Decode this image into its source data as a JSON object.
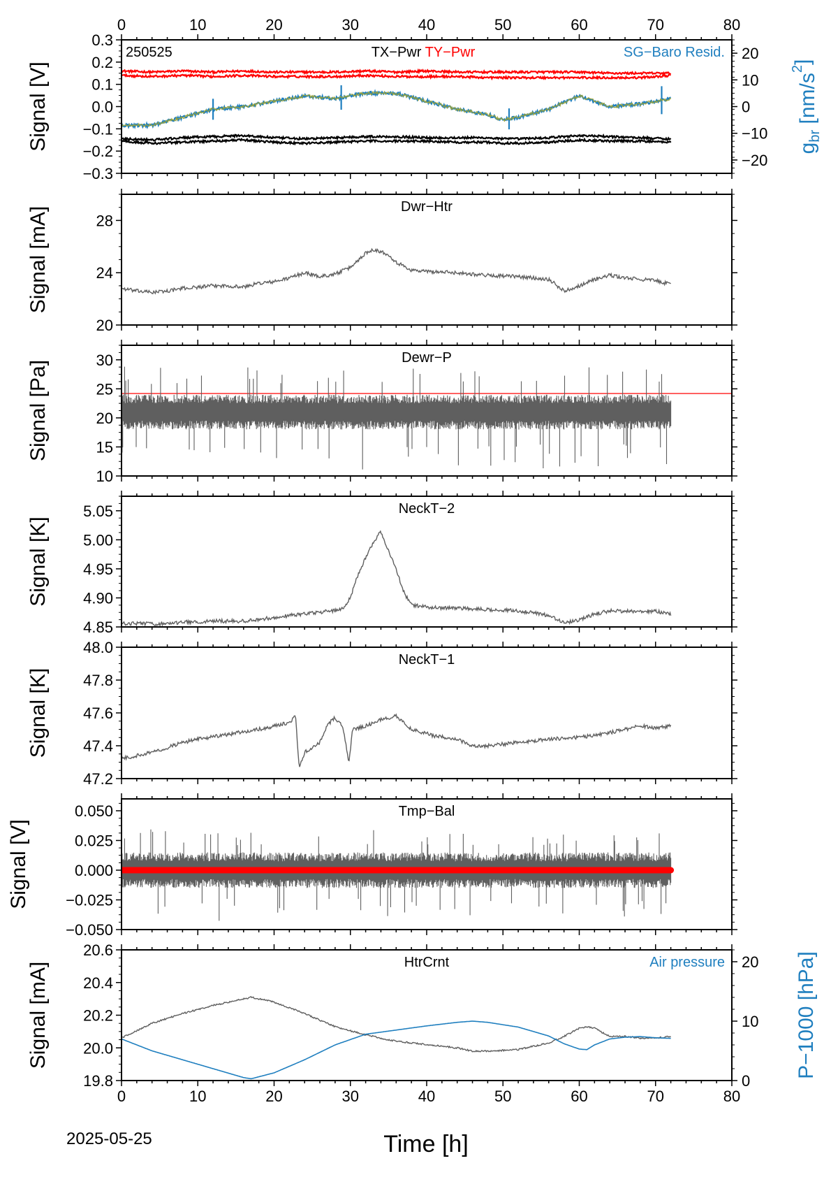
{
  "date_label": "2025-05-25",
  "x_axis": {
    "label": "Time [h]",
    "lim": [
      0,
      80
    ],
    "ticks": [
      0,
      10,
      20,
      30,
      40,
      50,
      60,
      70,
      80
    ]
  },
  "colors": {
    "signal": "#5f5f5f",
    "red": "#ff0000",
    "blue": "#1f7fbf",
    "olive": "#9aa33a",
    "black": "#000000"
  },
  "chart_data": [
    {
      "type": "line",
      "id": "tx-ty-pwr",
      "code_label": "250525",
      "panel_title": "TX−Pwr",
      "panel_title2": "TY−Pwr",
      "right_legend": "SG−Baro Resid.",
      "ylabel": "Signal [V]",
      "ylim": [
        -0.3,
        0.3
      ],
      "yticks": [
        -0.3,
        -0.2,
        -0.1,
        0.0,
        0.1,
        0.2,
        0.3
      ],
      "ytick_labels": [
        "−0.3",
        "−0.2",
        "−0.1",
        "0.0",
        "0.1",
        "0.2",
        "0.3"
      ],
      "y2label_main": "g",
      "y2label_sub": "br",
      "y2label_rest": " [nm/s",
      "y2label_sup": "2",
      "y2label_end": "]",
      "y2lim": [
        -25,
        25
      ],
      "y2ticks": [
        -20,
        -10,
        0,
        10,
        20
      ],
      "y2tick_labels": [
        "−20",
        "−10",
        "0",
        "10",
        "20"
      ],
      "x": [
        0,
        4,
        8,
        12,
        16,
        20,
        24,
        28,
        32,
        36,
        40,
        44,
        48,
        50,
        52,
        56,
        60,
        64,
        68,
        72
      ],
      "series": [
        {
          "name": "TY−Pwr",
          "color": "red",
          "axis": "left",
          "values": [
            0.16,
            0.155,
            0.16,
            0.155,
            0.16,
            0.155,
            0.155,
            0.155,
            0.16,
            0.155,
            0.16,
            0.155,
            0.155,
            0.155,
            0.155,
            0.155,
            0.155,
            0.15,
            0.15,
            0.15
          ]
        },
        {
          "color": "red",
          "axis": "left",
          "values": [
            0.14,
            0.135,
            0.14,
            0.135,
            0.14,
            0.135,
            0.135,
            0.135,
            0.14,
            0.135,
            0.135,
            0.135,
            0.13,
            0.13,
            0.13,
            0.13,
            0.13,
            0.13,
            0.13,
            0.14
          ]
        },
        {
          "name": "TX−Pwr",
          "color": "black",
          "axis": "left",
          "values": [
            -0.145,
            -0.15,
            -0.14,
            -0.135,
            -0.13,
            -0.14,
            -0.145,
            -0.14,
            -0.135,
            -0.135,
            -0.14,
            -0.14,
            -0.14,
            -0.145,
            -0.145,
            -0.14,
            -0.13,
            -0.135,
            -0.14,
            -0.145
          ]
        },
        {
          "color": "black",
          "axis": "left",
          "values": [
            -0.155,
            -0.165,
            -0.16,
            -0.155,
            -0.15,
            -0.16,
            -0.165,
            -0.16,
            -0.155,
            -0.155,
            -0.155,
            -0.16,
            -0.16,
            -0.165,
            -0.165,
            -0.16,
            -0.15,
            -0.155,
            -0.155,
            -0.16
          ]
        },
        {
          "name": "SG−Baro Resid.",
          "color": "blue",
          "axis": "right",
          "values": [
            -7,
            -7,
            -4,
            -1,
            0,
            2,
            4,
            3,
            5,
            5,
            2,
            -1,
            -3,
            -5,
            -4,
            -1,
            4,
            0,
            1,
            3
          ]
        },
        {
          "color": "olive",
          "axis": "right",
          "values": [
            -7,
            -7,
            -4,
            -1,
            0,
            2,
            4,
            3,
            5,
            5,
            2,
            -1,
            -3,
            -5,
            -4,
            -1,
            4,
            0,
            1,
            3
          ]
        }
      ]
    },
    {
      "type": "line",
      "id": "dwr-htr",
      "panel_title": "Dwr−Htr",
      "ylabel": "Signal [mA]",
      "ylim": [
        20,
        30
      ],
      "yticks": [
        20,
        24,
        28
      ],
      "ytick_labels": [
        "20",
        "24",
        "28"
      ],
      "x": [
        0,
        2,
        4,
        6,
        8,
        10,
        12,
        14,
        16,
        18,
        20,
        22,
        24,
        26,
        28,
        30,
        32,
        33,
        35,
        36,
        38,
        40,
        44,
        48,
        52,
        56,
        58,
        60,
        62,
        64,
        66,
        68,
        70,
        72
      ],
      "series": [
        {
          "color": "signal",
          "values": [
            22.8,
            22.6,
            22.5,
            22.6,
            22.8,
            22.9,
            23.0,
            23.0,
            22.9,
            23.2,
            23.3,
            23.6,
            24.0,
            23.7,
            23.9,
            24.4,
            25.5,
            25.8,
            25.4,
            24.8,
            24.2,
            24.1,
            24.0,
            23.8,
            23.7,
            23.5,
            22.6,
            23.0,
            23.5,
            23.8,
            23.6,
            23.5,
            23.4,
            23.1
          ]
        }
      ]
    },
    {
      "type": "line",
      "id": "dewr-p",
      "panel_title": "Dewr−P",
      "ylabel": "Signal [Pa]",
      "ylim": [
        10,
        32.5
      ],
      "yticks": [
        10,
        15,
        20,
        25,
        30
      ],
      "ytick_labels": [
        "10",
        "15",
        "20",
        "25",
        "30"
      ],
      "hline": {
        "value": 24.2,
        "color": "red"
      },
      "x_range": [
        0,
        72
      ],
      "series": [
        {
          "color": "signal",
          "mean": 21,
          "band": [
            18,
            24
          ],
          "spike_max": 29,
          "spike_min": 11
        }
      ]
    },
    {
      "type": "line",
      "id": "neckt-2",
      "panel_title": "NeckT−2",
      "ylabel": "Signal [K]",
      "ylim": [
        4.85,
        5.075
      ],
      "yticks": [
        4.85,
        4.9,
        4.95,
        5.0,
        5.05
      ],
      "ytick_labels": [
        "4.85",
        "4.90",
        "4.95",
        "5.00",
        "5.05"
      ],
      "x": [
        0,
        3,
        5,
        8,
        12,
        16,
        20,
        24,
        28,
        29,
        30,
        31,
        32,
        33,
        34,
        35,
        36,
        37,
        38,
        40,
        44,
        48,
        52,
        56,
        58,
        60,
        62,
        64,
        66,
        68,
        70,
        72
      ],
      "series": [
        {
          "color": "signal",
          "values": [
            4.856,
            4.856,
            4.855,
            4.858,
            4.86,
            4.86,
            4.866,
            4.873,
            4.878,
            4.882,
            4.9,
            4.94,
            4.97,
            4.995,
            5.015,
            4.98,
            4.95,
            4.91,
            4.888,
            4.884,
            4.882,
            4.88,
            4.878,
            4.87,
            4.857,
            4.862,
            4.872,
            4.878,
            4.877,
            4.877,
            4.877,
            4.872
          ]
        }
      ]
    },
    {
      "type": "line",
      "id": "neckt-1",
      "panel_title": "NeckT−1",
      "ylabel": "Signal [K]",
      "ylim": [
        47.2,
        48.0
      ],
      "yticks": [
        47.2,
        47.4,
        47.6,
        47.8,
        48.0
      ],
      "ytick_labels": [
        "47.2",
        "47.4",
        "47.6",
        "47.8",
        "48.0"
      ],
      "x": [
        0,
        2,
        4,
        6,
        8,
        10,
        14,
        18,
        20,
        22,
        22.8,
        23.3,
        24,
        26,
        27,
        28,
        29,
        29.8,
        30.3,
        32,
        34,
        36,
        38,
        41,
        44,
        46,
        48,
        52,
        56,
        60,
        64,
        66,
        68,
        70,
        72
      ],
      "series": [
        {
          "color": "signal",
          "values": [
            47.32,
            47.34,
            47.36,
            47.39,
            47.42,
            47.44,
            47.47,
            47.5,
            47.52,
            47.54,
            47.58,
            47.26,
            47.36,
            47.42,
            47.53,
            47.57,
            47.52,
            47.3,
            47.5,
            47.52,
            47.56,
            47.58,
            47.5,
            47.46,
            47.44,
            47.4,
            47.4,
            47.42,
            47.44,
            47.45,
            47.48,
            47.5,
            47.52,
            47.51,
            47.52
          ]
        }
      ]
    },
    {
      "type": "line",
      "id": "tmp-bal",
      "panel_title": "Tmp−Bal",
      "ylabel": "Signal [V]",
      "ylim": [
        -0.05,
        0.06
      ],
      "yticks": [
        -0.05,
        -0.025,
        0.0,
        0.025,
        0.05
      ],
      "ytick_labels": [
        "−0.050",
        "−0.025",
        "0.000",
        "0.025",
        "0.050"
      ],
      "x_range": [
        0,
        72
      ],
      "series": [
        {
          "color": "signal",
          "mean": 0.0,
          "band": [
            -0.015,
            0.015
          ],
          "spike_max": 0.035,
          "spike_min": -0.043
        },
        {
          "color": "red",
          "values_constant": 0.0
        }
      ]
    },
    {
      "type": "line",
      "id": "htrcrnt",
      "panel_title": "HtrCrnt",
      "right_legend": "Air pressure",
      "ylabel": "Signal [mA]",
      "ylim": [
        19.8,
        20.6
      ],
      "yticks": [
        19.8,
        20.0,
        20.2,
        20.4,
        20.6
      ],
      "ytick_labels": [
        "19.8",
        "20.0",
        "20.2",
        "20.4",
        "20.6"
      ],
      "y2label": "P−1000 [hPa]",
      "y2lim": [
        0,
        22
      ],
      "y2ticks": [
        0,
        10,
        20
      ],
      "y2tick_labels": [
        "0",
        "10",
        "20"
      ],
      "x": [
        0,
        4,
        8,
        12,
        16,
        17,
        20,
        24,
        28,
        32,
        36,
        40,
        44,
        46,
        48,
        52,
        56,
        58,
        60,
        61,
        62,
        64,
        66,
        68,
        70,
        72
      ],
      "series": [
        {
          "name": "HtrCrnt",
          "color": "signal",
          "values": [
            20.06,
            20.15,
            20.21,
            20.26,
            20.3,
            20.31,
            20.28,
            20.21,
            20.13,
            20.08,
            20.04,
            20.02,
            20.0,
            19.98,
            19.98,
            19.99,
            20.03,
            20.07,
            20.12,
            20.13,
            20.12,
            20.07,
            20.07,
            20.06,
            20.06,
            20.07
          ]
        },
        {
          "name": "Air pressure",
          "color": "blue",
          "axis": "right",
          "values": [
            7.0,
            5.0,
            3.5,
            2.0,
            0.5,
            0.3,
            1.3,
            3.5,
            6.0,
            7.8,
            8.5,
            9.2,
            9.8,
            10.0,
            9.8,
            9.0,
            7.5,
            6.2,
            5.3,
            5.2,
            6.0,
            7.0,
            7.3,
            7.4,
            7.2,
            7.1
          ]
        }
      ]
    }
  ]
}
